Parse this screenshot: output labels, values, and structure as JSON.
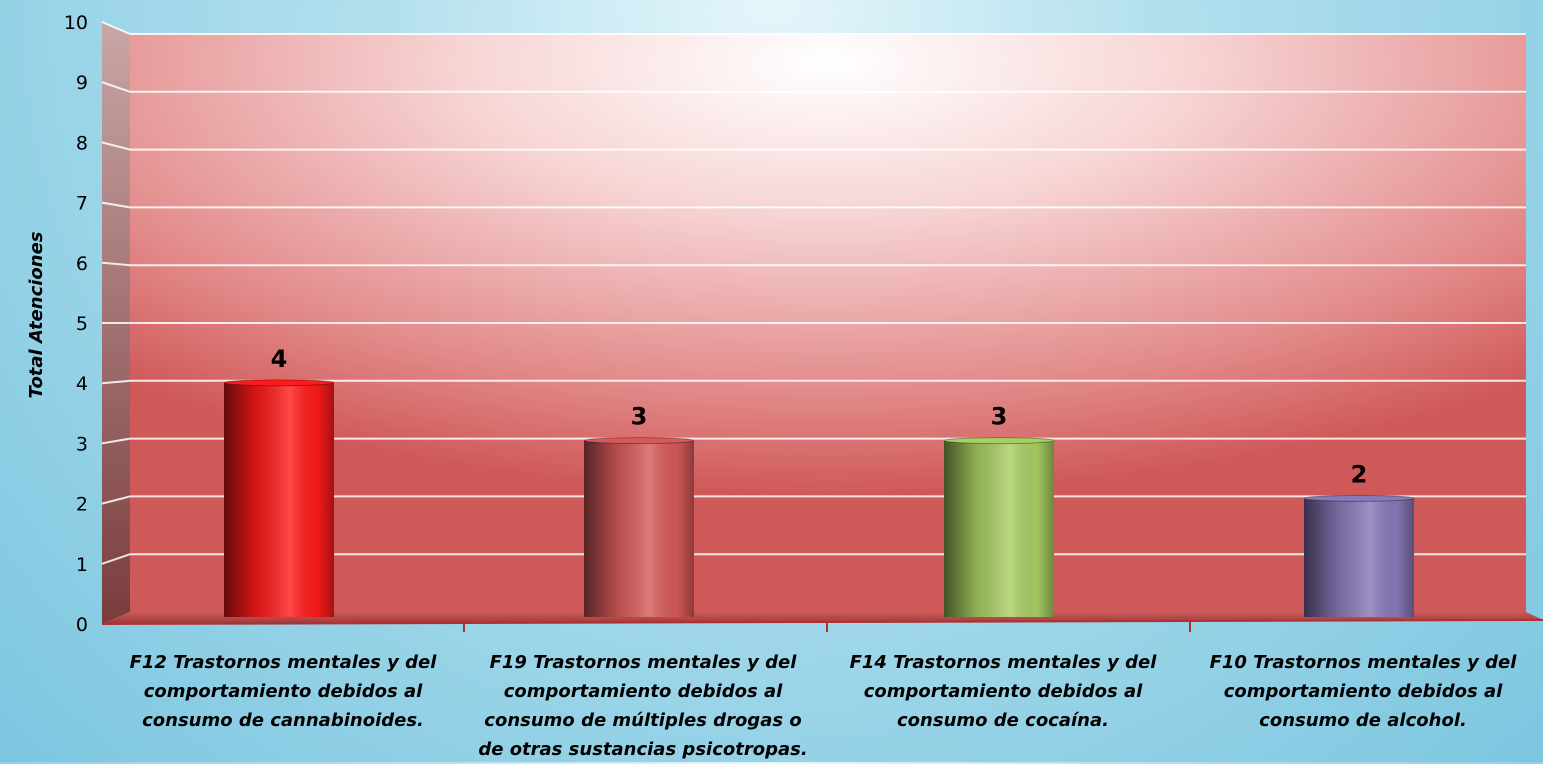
{
  "chart_data": {
    "type": "bar",
    "categories": [
      "F12 Trastornos mentales y del comportamiento debidos al consumo de cannabinoides.",
      "F19 Trastornos mentales y del comportamiento debidos al consumo de múltiples drogas o de otras sustancias psicotropas.",
      "F14 Trastornos mentales y del comportamiento debidos al consumo de cocaína.",
      "F10 Trastornos mentales y del comportamiento debidos al consumo de alcohol."
    ],
    "values": [
      4,
      3,
      3,
      2
    ],
    "ylabel": "Total Atenciones",
    "ylim": [
      0,
      10
    ],
    "yticks": [
      "0",
      "1",
      "2",
      "3",
      "4",
      "5",
      "6",
      "7",
      "8",
      "9",
      "10"
    ],
    "bar_colors": [
      "#ff1a1a",
      "#d75a5a",
      "#a9cf63",
      "#8a78b8"
    ],
    "grid": true,
    "legend": "none"
  }
}
